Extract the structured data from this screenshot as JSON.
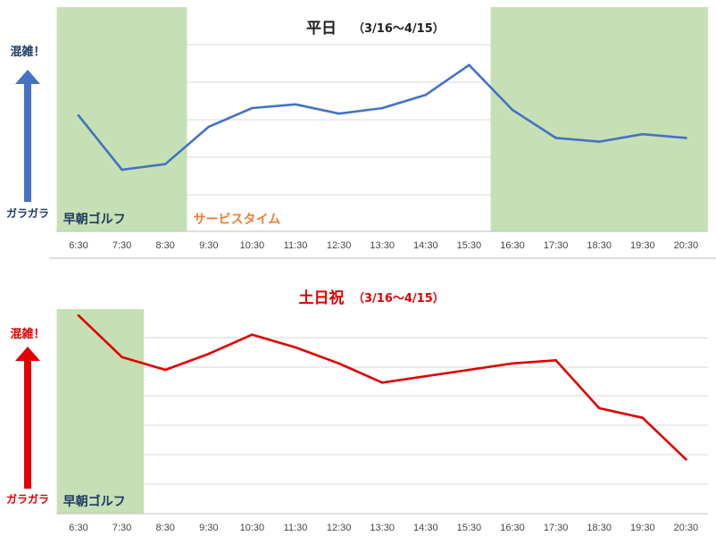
{
  "colors": {
    "band": "#c5e0b4",
    "grid": "#d9d9d9",
    "axis": "#bfbfbf",
    "weekday_line": "#4472c4",
    "holiday_line": "#e00000",
    "weekday_text": "#1f3864",
    "holiday_text": "#e00000",
    "band_text": "#1f3864",
    "service_text": "#ed7d31"
  },
  "chart_data": [
    {
      "type": "line",
      "title": "平日",
      "subtitle": "（3/16～4/15）",
      "categories": [
        "6:30",
        "7:30",
        "8:30",
        "9:30",
        "10:30",
        "11:30",
        "12:30",
        "13:30",
        "14:30",
        "15:30",
        "16:30",
        "17:30",
        "18:30",
        "19:30",
        "20:30"
      ],
      "series": [
        {
          "values": [
            6.2,
            3.3,
            3.6,
            5.6,
            6.6,
            6.8,
            6.3,
            6.6,
            7.3,
            8.9,
            6.5,
            5.0,
            4.8,
            5.2,
            5.0
          ]
        }
      ],
      "ylim": [
        0,
        12
      ],
      "grid": true,
      "y_high_label": "混雑！",
      "y_low_label": "ガラガラ",
      "bands": [
        {
          "from": "6:30",
          "to": "8:30",
          "label": "早朝ゴルフ",
          "shaded": true
        },
        {
          "from": "9:30",
          "to": "15:30",
          "label": "サービスタイム",
          "shaded": false
        },
        {
          "from": "16:30",
          "to": "20:30",
          "label": "",
          "shaded": true
        }
      ]
    },
    {
      "type": "line",
      "title": "土日祝",
      "subtitle": "（3/16～4/15）",
      "categories": [
        "6:30",
        "7:30",
        "8:30",
        "9:30",
        "10:30",
        "11:30",
        "12:30",
        "13:30",
        "14:30",
        "15:30",
        "16:30",
        "17:30",
        "18:30",
        "19:30",
        "20:30"
      ],
      "series": [
        {
          "values": [
            6.2,
            4.9,
            4.5,
            5.0,
            5.6,
            5.2,
            4.7,
            4.1,
            4.3,
            4.5,
            4.7,
            4.8,
            3.3,
            3.0,
            1.7
          ]
        }
      ],
      "ylim": [
        0,
        6.4
      ],
      "grid": true,
      "y_high_label": "混雑！",
      "y_low_label": "ガラガラ",
      "bands": [
        {
          "from": "6:30",
          "to": "7:30",
          "label": "早朝ゴルフ",
          "shaded": true
        }
      ]
    }
  ]
}
